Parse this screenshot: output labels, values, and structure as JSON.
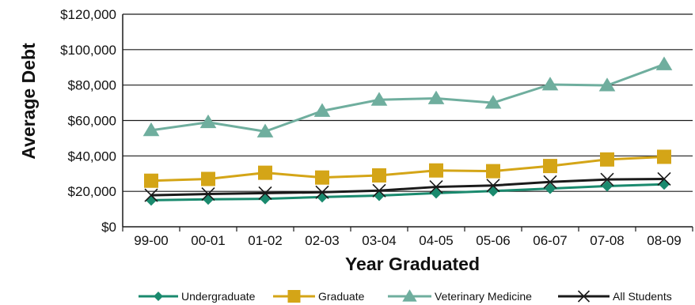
{
  "chart_data": {
    "type": "line",
    "title": "",
    "xlabel": "Year Graduated",
    "ylabel": "Average Debt",
    "categories": [
      "99-00",
      "00-01",
      "01-02",
      "02-03",
      "03-04",
      "04-05",
      "05-06",
      "06-07",
      "07-08",
      "08-09"
    ],
    "ylim": [
      0,
      120000
    ],
    "yticks": [
      0,
      20000,
      40000,
      60000,
      80000,
      100000,
      120000
    ],
    "ytick_labels": [
      "$0",
      "$20,000",
      "$40,000",
      "$60,000",
      "$80,000",
      "$100,000",
      "$120,000"
    ],
    "grid": true,
    "legend_position": "bottom",
    "series": [
      {
        "name": "Undergraduate",
        "marker": "diamond",
        "color": "#1a8a6e",
        "values": [
          15000,
          15500,
          15800,
          16800,
          17600,
          19000,
          20200,
          21600,
          23000,
          24000
        ]
      },
      {
        "name": "Graduate",
        "marker": "square",
        "color": "#d4a517",
        "values": [
          26000,
          27000,
          30500,
          27800,
          29000,
          31800,
          31400,
          34300,
          38000,
          39500
        ]
      },
      {
        "name": "Veterinary Medicine",
        "marker": "triangle",
        "color": "#6fae9e",
        "values": [
          54500,
          59000,
          53800,
          65400,
          71700,
          72500,
          70000,
          80300,
          79800,
          91700
        ]
      },
      {
        "name": "All Students",
        "marker": "x",
        "color": "#1a1a1a",
        "values": [
          17800,
          18500,
          19000,
          19500,
          20400,
          22500,
          23300,
          25300,
          26700,
          27000
        ]
      }
    ]
  }
}
